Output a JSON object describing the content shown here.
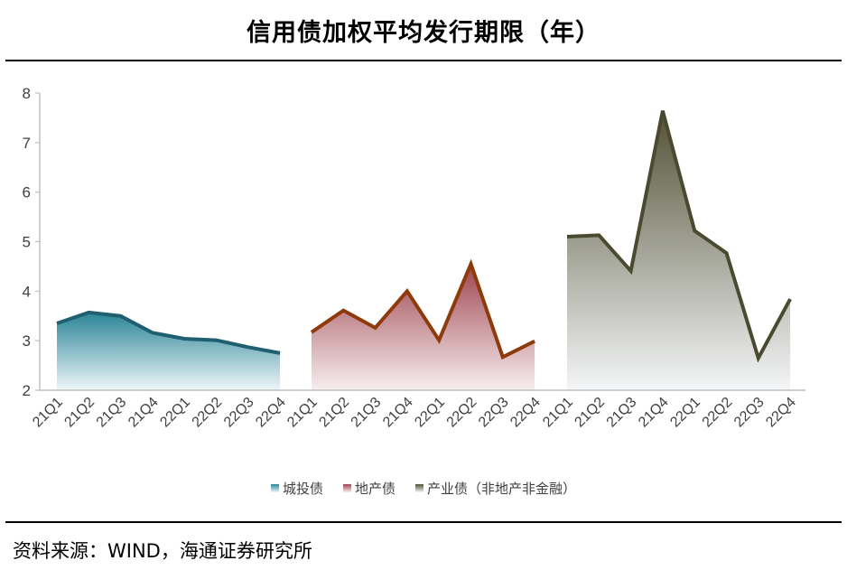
{
  "title": "信用债加权平均发行期限（年）",
  "source": "资料来源：WIND，海通证券研究所",
  "legend": [
    "城投债",
    "地产债",
    "产业债（非地产非金融）"
  ],
  "colors": {
    "城投债": {
      "line": "#1f5f70",
      "fill_top": "#2a8497",
      "fill_bottom": "#eef6f8"
    },
    "地产债": {
      "line": "#8e3a0b",
      "fill_top": "#9e4550",
      "fill_bottom": "#f7eeef"
    },
    "产业债（非地产非金融）": {
      "line": "#4a4a30",
      "fill_top": "#525236",
      "fill_bottom": "#f4f6f8"
    }
  },
  "chart_data": {
    "type": "area",
    "title": "信用债加权平均发行期限（年）",
    "categories": [
      "21Q1",
      "21Q2",
      "21Q3",
      "21Q4",
      "22Q1",
      "22Q2",
      "22Q3",
      "22Q4"
    ],
    "ylim": [
      2,
      8
    ],
    "yticks": [
      "2",
      "3",
      "4",
      "5",
      "6",
      "7",
      "8"
    ],
    "grid": false,
    "legend_position": "bottom",
    "series": [
      {
        "name": "城投债",
        "values": [
          3.35,
          3.57,
          3.5,
          3.16,
          3.04,
          3.01,
          2.87,
          2.75
        ]
      },
      {
        "name": "地产债",
        "values": [
          3.17,
          3.61,
          3.26,
          4.0,
          3.01,
          4.55,
          2.67,
          2.99
        ]
      },
      {
        "name": "产业债（非地产非金融）",
        "values": [
          5.1,
          5.13,
          4.41,
          7.64,
          5.22,
          4.77,
          2.65,
          3.84
        ]
      }
    ]
  }
}
